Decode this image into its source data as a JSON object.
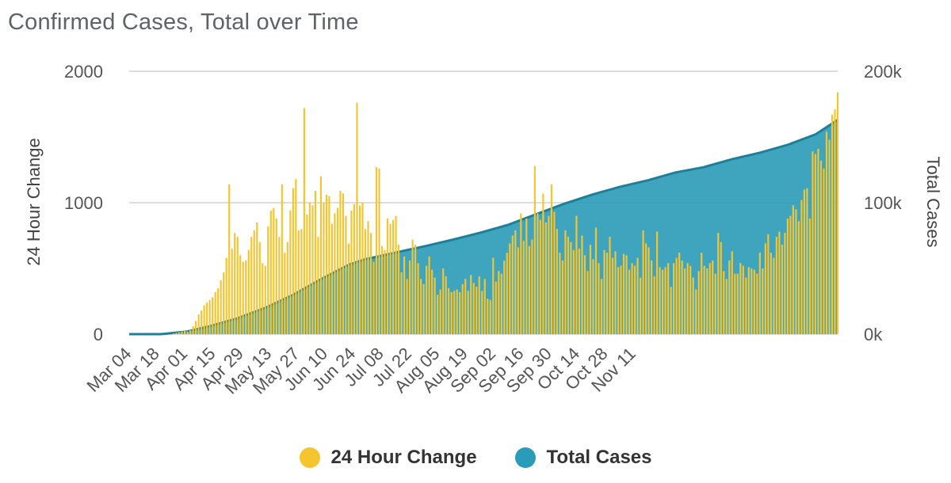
{
  "title": "Confirmed Cases, Total over Time",
  "chart_data": {
    "type": "bar+area",
    "title": "Confirmed Cases, Total over Time",
    "y_left_label": "24 Hour Change",
    "y_right_label": "Total Cases",
    "y_left_range": [
      0,
      2000
    ],
    "y_right_range": [
      0,
      200000
    ],
    "y_left_ticks": [
      "0",
      "1000",
      "2000"
    ],
    "y_right_ticks": [
      "0k",
      "100k",
      "200k"
    ],
    "x_ticks": [
      "Mar 04",
      "Mar 18",
      "Apr 01",
      "Apr 15",
      "Apr 29",
      "May 13",
      "May 27",
      "Jun 10",
      "Jun 24",
      "Jul 08",
      "Jul 22",
      "Aug 05",
      "Aug 19",
      "Sep 02",
      "Sep 16",
      "Sep 30",
      "Oct 14",
      "Oct 28",
      "Nov 11"
    ],
    "x_start": "Mar 04",
    "grid": true,
    "legend_position": "bottom",
    "series": [
      {
        "name": "24 Hour Change",
        "type": "bar",
        "axis": "left",
        "color": "#f5c530",
        "values": [
          0,
          0,
          0,
          0,
          0,
          0,
          0,
          0,
          0,
          0,
          0,
          0,
          0,
          0,
          0,
          0,
          5,
          10,
          15,
          20,
          25,
          20,
          30,
          60,
          100,
          150,
          180,
          220,
          240,
          260,
          280,
          320,
          350,
          410,
          470,
          580,
          1140,
          650,
          770,
          740,
          600,
          550,
          560,
          640,
          740,
          790,
          850,
          700,
          540,
          520,
          820,
          940,
          960,
          880,
          740,
          1140,
          620,
          700,
          940,
          1110,
          1180,
          790,
          800,
          1720,
          910,
          1000,
          980,
          1090,
          740,
          1200,
          1000,
          1060,
          1050,
          840,
          920,
          960,
          1090,
          1070,
          900,
          690,
          940,
          990,
          1760,
          980,
          1000,
          800,
          860,
          770,
          550,
          1270,
          1260,
          670,
          640,
          880,
          840,
          870,
          900,
          680,
          470,
          590,
          420,
          560,
          720,
          680,
          540,
          420,
          380,
          520,
          590,
          490,
          430,
          300,
          340,
          500,
          440,
          350,
          320,
          330,
          340,
          320,
          380,
          420,
          330,
          450,
          390,
          360,
          440,
          330,
          420,
          270,
          260,
          580,
          400,
          480,
          460,
          560,
          620,
          690,
          750,
          790,
          660,
          920,
          710,
          880,
          670,
          720,
          1280,
          920,
          870,
          1070,
          850,
          900,
          1140,
          930,
          800,
          620,
          560,
          790,
          740,
          700,
          640,
          900,
          650,
          750,
          600,
          480,
          680,
          570,
          810,
          540,
          420,
          640,
          620,
          740,
          580,
          630,
          510,
          520,
          610,
          600,
          490,
          540,
          520,
          580,
          430,
          790,
          690,
          660,
          560,
          440,
          780,
          510,
          490,
          510,
          540,
          360,
          540,
          580,
          620,
          560,
          500,
          540,
          520,
          430,
          340,
          480,
          620,
          520,
          500,
          540,
          560,
          460,
          770,
          700,
          480,
          420,
          560,
          630,
          460,
          460,
          540,
          520,
          430,
          510,
          500,
          490,
          460,
          620,
          500,
          690,
          760,
          620,
          580,
          740,
          780,
          680,
          770,
          880,
          900,
          980,
          950,
          860,
          1020,
          1100,
          1110,
          880,
          1390,
          1370,
          1410,
          1320,
          1260,
          1540,
          1480,
          1670,
          1710,
          1840
        ]
      },
      {
        "name": "Total Cases",
        "type": "area",
        "axis": "right",
        "color": "#2a9bb8",
        "points": [
          [
            0,
            0
          ],
          [
            16,
            0
          ],
          [
            29,
            2000
          ],
          [
            40,
            6000
          ],
          [
            54,
            12000
          ],
          [
            68,
            20000
          ],
          [
            82,
            30000
          ],
          [
            96,
            42000
          ],
          [
            110,
            53000
          ],
          [
            118,
            57000
          ],
          [
            133,
            62000
          ],
          [
            148,
            67000
          ],
          [
            162,
            72000
          ],
          [
            175,
            77000
          ],
          [
            189,
            83000
          ],
          [
            203,
            91000
          ],
          [
            217,
            99000
          ],
          [
            231,
            106000
          ],
          [
            245,
            112000
          ],
          [
            259,
            117000
          ],
          [
            273,
            123000
          ],
          [
            287,
            127000
          ],
          [
            301,
            133000
          ],
          [
            315,
            138000
          ],
          [
            329,
            144000
          ],
          [
            343,
            152000
          ],
          [
            351,
            160000
          ],
          [
            354,
            163000
          ]
        ]
      }
    ]
  }
}
